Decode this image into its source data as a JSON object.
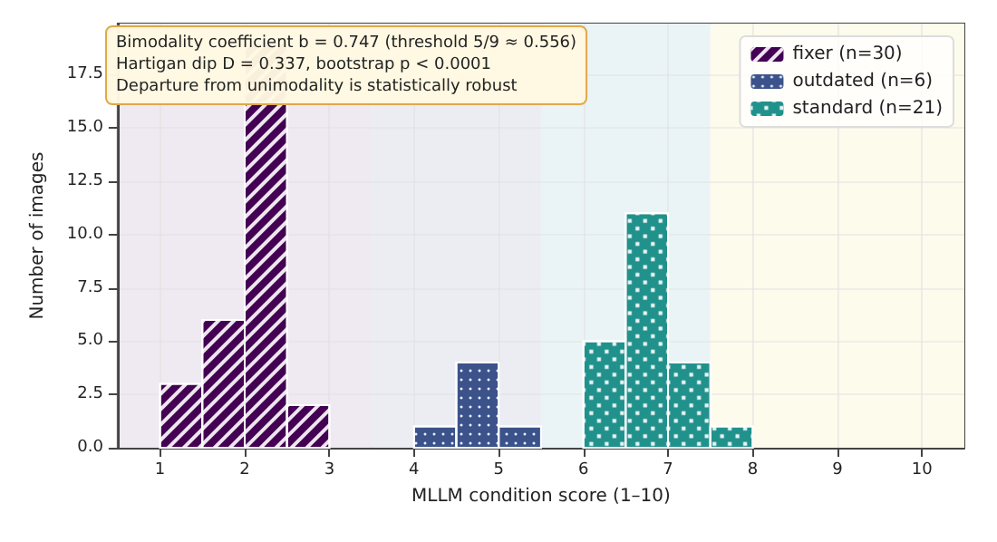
{
  "chart_data": {
    "type": "histogram",
    "xlabel": "MLLM condition score (1–10)",
    "ylabel": "Number of images",
    "bins": [
      1,
      1.5,
      2,
      2.5,
      3,
      3.5,
      4,
      4.5,
      5,
      5.5,
      6,
      6.5,
      7,
      7.5,
      8
    ],
    "series": [
      {
        "name": "fixer (n=30)",
        "color": "#440154",
        "values": [
          3,
          6,
          19,
          2,
          0,
          0,
          0,
          0,
          0,
          0,
          0,
          0,
          0,
          0
        ]
      },
      {
        "name": "outdated (n=6)",
        "color": "#3b528b",
        "values": [
          0,
          0,
          0,
          0,
          0,
          0,
          1,
          4,
          1,
          0,
          0,
          0,
          0,
          0
        ]
      },
      {
        "name": "standard (n=21)",
        "color": "#21918c",
        "values": [
          0,
          0,
          0,
          0,
          0,
          0,
          0,
          0,
          0,
          0,
          5,
          11,
          4,
          1
        ]
      }
    ],
    "xlim": [
      0.5,
      10.5
    ],
    "xticks": [
      1,
      2,
      3,
      4,
      5,
      6,
      7,
      8,
      9,
      10
    ],
    "ylim": [
      0,
      19.9
    ],
    "yticks": [
      {
        "value": 0,
        "label": "0.0"
      },
      {
        "value": 2.5,
        "label": "2.5"
      },
      {
        "value": 5,
        "label": "5.0"
      },
      {
        "value": 7.5,
        "label": "7.5"
      },
      {
        "value": 10,
        "label": "10.0"
      },
      {
        "value": 12.5,
        "label": "12.5"
      },
      {
        "value": 15,
        "label": "15.0"
      },
      {
        "value": 17.5,
        "label": "17.5"
      }
    ],
    "bands": [
      {
        "axis": "x",
        "from": 0.5,
        "to": 3.5,
        "color": "#efe9f1"
      },
      {
        "axis": "x",
        "from": 3.5,
        "to": 5.5,
        "color": "#ebedf3"
      },
      {
        "axis": "x",
        "from": 5.5,
        "to": 7.5,
        "color": "#eaf4f6"
      },
      {
        "axis": "x",
        "from": 7.5,
        "to": 10.5,
        "color": "#fdfbec"
      }
    ],
    "annotations": [
      "Bimodality coefficient b = 0.747 (threshold 5/9 ≈ 0.556)",
      "Hartigan dip D = 0.337, bootstrap p < 0.0001",
      "Departure from unimodality is statistically robust"
    ],
    "grid": true,
    "legend": "top right"
  }
}
